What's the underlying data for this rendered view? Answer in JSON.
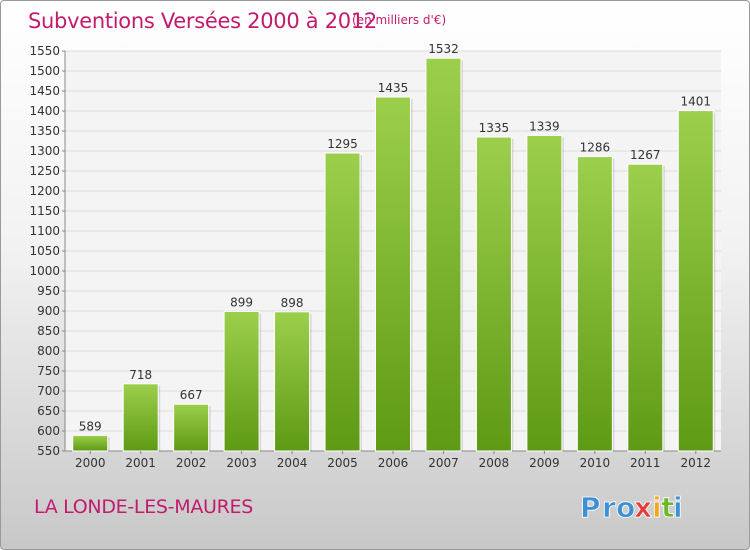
{
  "header": {
    "title": "Subventions Versées 2000 à 2012",
    "unit": "(en milliers d'€)"
  },
  "footer": {
    "city": "LA LONDE-LES-MAURES",
    "logo_text": "Proxiti",
    "logo_letters": [
      {
        "ch": "P",
        "color": "#3d8fd6"
      },
      {
        "ch": "r",
        "color": "#3d8fd6"
      },
      {
        "ch": "o",
        "color": "#3d8fd6"
      },
      {
        "ch": "x",
        "color": "#e83c3c"
      },
      {
        "ch": "i",
        "color": "#f2a81d"
      },
      {
        "ch": "t",
        "color": "#6bb82b"
      },
      {
        "ch": "i",
        "color": "#3d8fd6"
      }
    ]
  },
  "chart_data": {
    "type": "bar",
    "title": "Subventions Versées 2000 à 2012",
    "subtitle": "(en milliers d'€)",
    "xlabel": "",
    "ylabel": "",
    "categories": [
      "2000",
      "2001",
      "2002",
      "2003",
      "2004",
      "2005",
      "2006",
      "2007",
      "2008",
      "2009",
      "2010",
      "2011",
      "2012"
    ],
    "values": [
      589,
      718,
      667,
      899,
      898,
      1295,
      1435,
      1532,
      1335,
      1339,
      1286,
      1267,
      1401
    ],
    "data_labels": [
      "589",
      "718",
      "667",
      "899",
      "898",
      "1295",
      "1435",
      "1532",
      "1335",
      "1339",
      "1286",
      "1267",
      "1401"
    ],
    "ylim": [
      550,
      1550
    ],
    "yticks": [
      550,
      600,
      650,
      700,
      750,
      800,
      850,
      900,
      950,
      1000,
      1050,
      1100,
      1150,
      1200,
      1250,
      1300,
      1350,
      1400,
      1450,
      1500,
      1550
    ],
    "grid": true,
    "bar_color_top": "#9ccf4c",
    "bar_color_bottom": "#5e9a14",
    "title_color": "#c21b6e"
  }
}
